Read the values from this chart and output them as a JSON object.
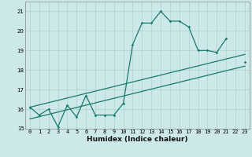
{
  "title": "",
  "xlabel": "Humidex (Indice chaleur)",
  "bg_color": "#cce8e8",
  "grid_color": "#aad0d0",
  "line_color": "#1a7a6e",
  "x_data": [
    0,
    1,
    2,
    3,
    4,
    5,
    6,
    7,
    8,
    9,
    10,
    11,
    12,
    13,
    14,
    15,
    16,
    17,
    18,
    19,
    20,
    21,
    22,
    23
  ],
  "y_main": [
    16.1,
    15.7,
    16.0,
    15.1,
    16.2,
    15.6,
    16.7,
    15.7,
    15.7,
    15.7,
    16.3,
    19.3,
    20.4,
    20.4,
    21.0,
    20.5,
    20.5,
    20.2,
    19.0,
    19.0,
    18.9,
    19.6,
    null,
    18.4
  ],
  "y_trend1_start": 16.1,
  "y_trend1_end": 18.8,
  "y_trend2_start": 15.5,
  "y_trend2_end": 18.2,
  "ylim": [
    15.0,
    21.5
  ],
  "xlim": [
    -0.5,
    23.5
  ],
  "yticks": [
    15,
    16,
    17,
    18,
    19,
    20,
    21
  ],
  "xticks": [
    0,
    1,
    2,
    3,
    4,
    5,
    6,
    7,
    8,
    9,
    10,
    11,
    12,
    13,
    14,
    15,
    16,
    17,
    18,
    19,
    20,
    21,
    22,
    23
  ],
  "tick_fontsize": 5.0,
  "xlabel_fontsize": 6.5
}
